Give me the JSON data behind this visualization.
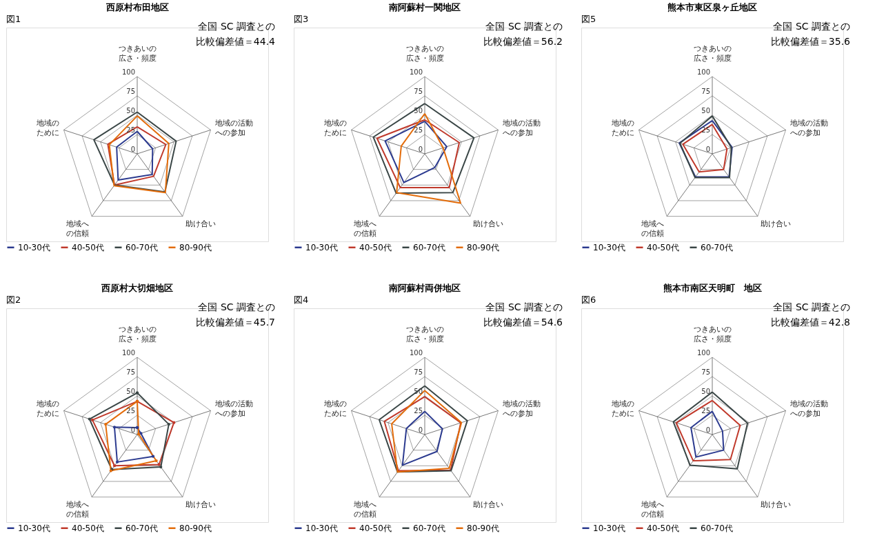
{
  "chart_data": [
    {
      "type": "radar",
      "title": "西原村布田地区",
      "annotations": [
        "図1",
        "全国 SC 調査との比較偏差値＝44.4"
      ],
      "categories": [
        "つきあいの広さ・頻度",
        "地域の活動への参加",
        "助け合い",
        "地域への信頼",
        "地域のために"
      ],
      "ylim": [
        0,
        100
      ],
      "yticks": [
        0,
        25,
        50,
        75,
        100
      ],
      "grid": true,
      "legend": "bottom",
      "line_style": "solid",
      "series": [
        {
          "name": "10-30代",
          "color": "#2b3a8f",
          "values": [
            29,
            21,
            33,
            42,
            28
          ]
        },
        {
          "name": "40-50代",
          "color": "#c0392b",
          "values": [
            35,
            39,
            36,
            50,
            40
          ]
        },
        {
          "name": "60-70代",
          "color": "#3a4646",
          "values": [
            54,
            53,
            61,
            50,
            59
          ]
        },
        {
          "name": "80-90代",
          "color": "#e36c0a",
          "values": [
            49,
            43,
            62,
            51,
            38
          ]
        }
      ]
    },
    {
      "type": "radar",
      "title": "南阿蘇村一関地区",
      "annotations": [
        "図3",
        "全国 SC 調査との比較偏差値＝56.2"
      ],
      "categories": [
        "つきあいの広さ・頻度",
        "地域の活動への参加",
        "助け合い",
        "地域への信頼",
        "地域のために"
      ],
      "ylim": [
        0,
        100
      ],
      "yticks": [
        0,
        25,
        50,
        75,
        100
      ],
      "grid": true,
      "legend": "bottom",
      "line_style": "solid",
      "series": [
        {
          "name": "10-30代",
          "color": "#2b3a8f",
          "values": [
            42,
            30,
            22,
            46,
            54
          ]
        },
        {
          "name": "40-50代",
          "color": "#c0392b",
          "values": [
            44,
            47,
            54,
            54,
            65
          ]
        },
        {
          "name": "60-70代",
          "color": "#3a4646",
          "values": [
            65,
            67,
            62,
            63,
            70
          ]
        },
        {
          "name": "80-90代",
          "color": "#e36c0a",
          "values": [
            52,
            25,
            79,
            62,
            32
          ]
        }
      ]
    },
    {
      "type": "radar",
      "title": "熊本市東区泉ヶ丘地区",
      "annotations": [
        "図5",
        "全国 SC 調査との比較偏差値＝35.6"
      ],
      "categories": [
        "つきあいの広さ・頻度",
        "地域の活動への参加",
        "助け合い",
        "地域への信頼",
        "地域のために"
      ],
      "ylim": [
        0,
        100
      ],
      "yticks": [
        0,
        25,
        50,
        75,
        100
      ],
      "grid": true,
      "legend": "bottom",
      "line_style": "solid",
      "series": [
        {
          "name": "10-30代",
          "color": "#2b3a8f",
          "values": [
            43,
            27,
            37,
            37,
            45
          ]
        },
        {
          "name": "40-50代",
          "color": "#c0392b",
          "values": [
            38,
            20,
            25,
            29,
            40
          ]
        },
        {
          "name": "60-70代",
          "color": "#3a4646",
          "values": [
            49,
            26,
            38,
            38,
            44
          ]
        }
      ]
    },
    {
      "type": "radar",
      "title": "西原村大切畑地区",
      "annotations": [
        "図2",
        "全国 SC 調査との比較偏差値＝45.7"
      ],
      "categories": [
        "つきあいの広さ・頻度",
        "地域の活動への参加",
        "助け合い",
        "地域への信頼",
        "地域のために"
      ],
      "ylim": [
        0,
        100
      ],
      "yticks": [
        0,
        25,
        50,
        75,
        100
      ],
      "grid": true,
      "legend": "bottom",
      "marker": "circle",
      "line_style": "solid",
      "series": [
        {
          "name": "10-30代",
          "color": "#2b3a8f",
          "values": [
            9,
            5,
            35,
            44,
            31
          ]
        },
        {
          "name": "40-50代",
          "color": "#c0392b",
          "values": [
            43,
            50,
            48,
            50,
            61
          ]
        },
        {
          "name": "60-70代",
          "color": "#3a4646",
          "values": [
            54,
            43,
            52,
            56,
            65
          ]
        },
        {
          "name": "80-90代",
          "color": "#e36c0a",
          "values": [
            43,
            2,
            42,
            58,
            43
          ]
        }
      ]
    },
    {
      "type": "radar",
      "title": "南阿蘇村両併地区",
      "annotations": [
        "図4",
        "全国 SC 調査との比較偏差値＝54.6"
      ],
      "categories": [
        "つきあいの広さ・頻度",
        "地域の活動への参加",
        "助け合い",
        "地域への信頼",
        "地域のために"
      ],
      "ylim": [
        0,
        100
      ],
      "yticks": [
        0,
        25,
        50,
        75,
        100
      ],
      "grid": true,
      "legend": "bottom",
      "line_style": "solid",
      "series": [
        {
          "name": "10-30代",
          "color": "#2b3a8f",
          "values": [
            30,
            24,
            27,
            49,
            25
          ]
        },
        {
          "name": "40-50代",
          "color": "#c0392b",
          "values": [
            49,
            49,
            57,
            58,
            55
          ]
        },
        {
          "name": "60-70代",
          "color": "#3a4646",
          "values": [
            63,
            58,
            58,
            60,
            62
          ]
        },
        {
          "name": "80-90代",
          "color": "#e36c0a",
          "values": [
            57,
            50,
            54,
            60,
            45
          ]
        }
      ]
    },
    {
      "type": "radar",
      "title": "熊本市南区天明町　地区",
      "annotations": [
        "図6",
        "全国 SC 調査との比較偏差値＝42.8"
      ],
      "categories": [
        "つきあいの広さ・頻度",
        "地域の活動への参加",
        "助け合い",
        "地域への信頼",
        "地域のために"
      ],
      "ylim": [
        0,
        100
      ],
      "yticks": [
        0,
        25,
        50,
        75,
        100
      ],
      "grid": true,
      "legend": "bottom",
      "line_style": "solid",
      "series": [
        {
          "name": "10-30代",
          "color": "#2b3a8f",
          "values": [
            30,
            14,
            25,
            36,
            29
          ]
        },
        {
          "name": "40-50代",
          "color": "#c0392b",
          "values": [
            44,
            38,
            40,
            42,
            49
          ]
        },
        {
          "name": "60-70代",
          "color": "#3a4646",
          "values": [
            55,
            48,
            55,
            49,
            53
          ]
        }
      ]
    }
  ]
}
